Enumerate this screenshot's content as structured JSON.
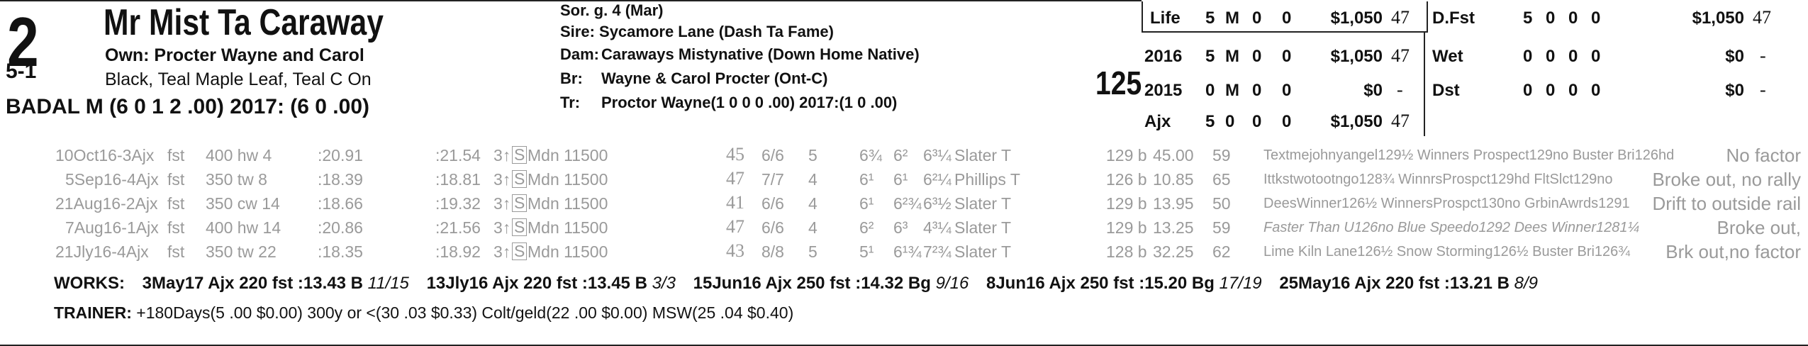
{
  "horse": {
    "program_number": "2",
    "morning_line": "5-1",
    "name": "Mr Mist Ta Caraway",
    "owner": "Own: Procter Wayne and Carol",
    "silks": "Black, Teal Maple Leaf, Teal C On",
    "jockey": "BADAL M (6 0 1 2 .00) 2017: (6 0 .00)",
    "weight": "125"
  },
  "breeding": {
    "desc": "Sor. g. 4 (Mar)",
    "sire": "Sire: Sycamore Lane (Dash Ta Fame)",
    "dam_label": "Dam:",
    "dam": "Caraways Mistynative (Down Home Native)",
    "breeder_label": "Br:",
    "breeder": "Wayne & Carol Procter (Ont-C)",
    "trainer_label": "Tr:",
    "trainer": "Proctor Wayne(1 0 0 0 .00)  2017:(1 0 .00)"
  },
  "stats_left": [
    {
      "label": "Life",
      "s": "5",
      "w": "M",
      "p": "0",
      "sh": "0",
      "earn": "$1,050",
      "spd": "47"
    },
    {
      "label": "2016",
      "s": "5",
      "w": "M",
      "p": "0",
      "sh": "0",
      "earn": "$1,050",
      "spd": "47"
    },
    {
      "label": "2015",
      "s": "0",
      "w": "M",
      "p": "0",
      "sh": "0",
      "earn": "$0",
      "spd": "-"
    },
    {
      "label": "Ajx",
      "s": "5",
      "w": "0",
      "p": "0",
      "sh": "0",
      "earn": "$1,050",
      "spd": "47"
    }
  ],
  "stats_right": [
    {
      "label": "D.Fst",
      "s": "5",
      "w": "0",
      "p": "0",
      "sh": "0",
      "earn": "$1,050",
      "spd": "47"
    },
    {
      "label": "Wet",
      "s": "0",
      "w": "0",
      "p": "0",
      "sh": "0",
      "earn": "$0",
      "spd": "-"
    },
    {
      "label": "Dst",
      "s": "0",
      "w": "0",
      "p": "0",
      "sh": "0",
      "earn": "$0",
      "spd": "-"
    }
  ],
  "past_performances": [
    {
      "date": "10Oct16-3Ajx",
      "cond": "fst",
      "dist": "400 hw 4",
      "frac1": ":20.91",
      "frac2": ":21.54",
      "age": "3↑",
      "s": "S",
      "race": "Mdn 11500",
      "spd": "45",
      "pp": "6/6",
      "st": "5",
      "c1": "6¾",
      "c2": "6²",
      "fin": "6³¼",
      "jock": "Slater T",
      "wt": "129 b",
      "odds": "45.00",
      "fig": "59",
      "comment": "Textmejohnyangel129½ Winners Prospect129no Buster Bri126hd",
      "remark": "No factor"
    },
    {
      "date": "5Sep16-4Ajx",
      "cond": "fst",
      "dist": "350 tw 8",
      "frac1": ":18.39",
      "frac2": ":18.81",
      "age": "3↑",
      "s": "S",
      "race": "Mdn 11500",
      "spd": "47",
      "pp": "7/7",
      "st": "4",
      "c1": "6¹",
      "c2": "6¹",
      "fin": "6²¼",
      "jock": "Phillips T",
      "wt": "126 b",
      "odds": "10.85",
      "fig": "65",
      "comment": "Ittkstwotootngo128¾ WinnrsProspct129hd FltSlct129no",
      "remark": "Broke out, no rally"
    },
    {
      "date": "21Aug16-2Ajx",
      "cond": "fst",
      "dist": "350 cw 14",
      "frac1": ":18.66",
      "frac2": ":19.32",
      "age": "3↑",
      "s": "S",
      "race": "Mdn 11500",
      "spd": "41",
      "pp": "6/6",
      "st": "4",
      "c1": "6¹",
      "c2": "6²¾",
      "fin": "6³½",
      "jock": "Slater T",
      "wt": "129 b",
      "odds": "13.95",
      "fig": "50",
      "comment": "DeesWinner126½ WinnersProspct130no GrbinAwrds1291",
      "remark": "Drift to outside rail"
    },
    {
      "date": "7Aug16-1Ajx",
      "cond": "fst",
      "dist": "400 hw 14",
      "frac1": ":20.86",
      "frac2": ":21.56",
      "age": "3↑",
      "s": "S",
      "race": "Mdn 11500",
      "spd": "47",
      "pp": "6/6",
      "st": "4",
      "c1": "6²",
      "c2": "6³",
      "fin": "4³¼",
      "jock": "Slater T",
      "wt": "129 b",
      "odds": "13.25",
      "fig": "59",
      "comment": "Faster Than U126no Blue Speedo1292 Dees Winner1281¼",
      "remark": "Broke out,"
    },
    {
      "date": "21Jly16-4Ajx",
      "cond": "fst",
      "dist": "350 tw 22",
      "frac1": ":18.35",
      "frac2": ":18.92",
      "age": "3↑",
      "s": "S",
      "race": "Mdn 11500",
      "spd": "43",
      "pp": "8/8",
      "st": "5",
      "c1": "5¹",
      "c2": "6¹¾",
      "fin": "7²¾",
      "jock": "Slater T",
      "wt": "128 b",
      "odds": "32.25",
      "fig": "62",
      "comment": "Lime Kiln Lane126½ Snow Storming126½ Buster Bri126¾",
      "remark": "Brk out,no factor"
    }
  ],
  "works": {
    "label": "WORKS:",
    "items": [
      {
        "date": "3May17",
        "text": "Ajx 220 fst :13.43 B",
        "rank": "11/15"
      },
      {
        "date": "13Jly16",
        "text": "Ajx 220 fst :13.45 B",
        "rank": "3/3"
      },
      {
        "date": "15Jun16",
        "text": "Ajx 250 fst :14.32 Bg",
        "rank": "9/16"
      },
      {
        "date": "8Jun16",
        "text": "Ajx 250 fst :15.20 Bg",
        "rank": "17/19"
      },
      {
        "date": "25May16",
        "text": "Ajx 220 fst :13.21 B",
        "rank": "8/9"
      }
    ]
  },
  "trainer_stats": {
    "label": "TRAINER:",
    "text": "+180Days(5 .00 $0.00) 300y or <(30 .03 $0.33) Colt/geld(22 .00 $0.00) MSW(25 .04 $0.40)"
  }
}
